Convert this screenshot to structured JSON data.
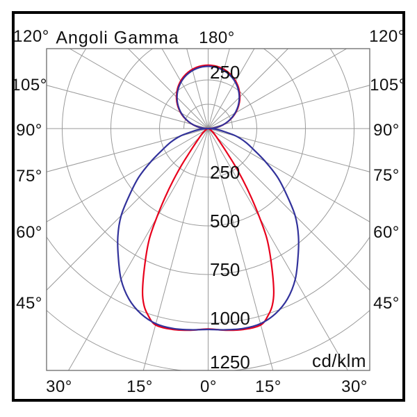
{
  "figure": {
    "title": "Angoli Gamma",
    "unit_label": "cd/klm"
  },
  "chart_data": {
    "type": "polar",
    "title": "Angoli Gamma",
    "radial_unit": "cd/klm",
    "radial_ticks": [
      250,
      500,
      750,
      1000,
      1250
    ],
    "radial_tick_step": 250,
    "radial_max": 1250,
    "angular_grid_step_deg": 15,
    "gamma_labels": {
      "top": "180°",
      "sides": [
        "120°",
        "105°",
        "90°",
        "75°",
        "60°",
        "45°"
      ],
      "bottom": [
        "30°",
        "15°",
        "0°",
        "15°",
        "30°"
      ]
    },
    "ring_labels": {
      "upper": "250",
      "lower": [
        "250",
        "500",
        "750",
        "1000",
        "1250"
      ]
    },
    "upper_lobe": {
      "shape": "circle_through_center",
      "max_cd_blue": 320,
      "max_cd_red": 326,
      "peak_gamma_deg": 180
    },
    "series": [
      {
        "id": "red_curve",
        "color_key": "red",
        "points_gamma_cd": [
          [
            0,
            1030
          ],
          [
            5,
            1040
          ],
          [
            10,
            1048
          ],
          [
            15,
            1045
          ],
          [
            18,
            1005
          ],
          [
            20,
            965
          ],
          [
            22,
            900
          ],
          [
            25,
            770
          ],
          [
            28,
            645
          ],
          [
            30,
            530
          ],
          [
            32,
            420
          ],
          [
            34,
            320
          ],
          [
            36,
            230
          ],
          [
            38,
            155
          ],
          [
            40,
            110
          ],
          [
            45,
            60
          ],
          [
            50,
            38
          ],
          [
            55,
            25
          ],
          [
            60,
            16
          ],
          [
            65,
            10
          ],
          [
            70,
            6
          ],
          [
            75,
            4
          ],
          [
            80,
            2
          ],
          [
            90,
            0
          ]
        ]
      },
      {
        "id": "blue_curve",
        "color_key": "blue",
        "points_gamma_cd": [
          [
            0,
            1032
          ],
          [
            5,
            1038
          ],
          [
            10,
            1043
          ],
          [
            15,
            1038
          ],
          [
            20,
            1012
          ],
          [
            25,
            965
          ],
          [
            30,
            895
          ],
          [
            35,
            805
          ],
          [
            40,
            722
          ],
          [
            45,
            632
          ],
          [
            50,
            525
          ],
          [
            55,
            435
          ],
          [
            60,
            340
          ],
          [
            65,
            260
          ],
          [
            70,
            205
          ],
          [
            75,
            148
          ],
          [
            80,
            78
          ],
          [
            85,
            40
          ],
          [
            90,
            5
          ]
        ]
      }
    ]
  },
  "colors": {
    "red": "#e8001c",
    "blue": "#32329b",
    "grid": "#9a9a9a",
    "box": "#6b6b6b",
    "frame": "#000000",
    "text": "#111111"
  }
}
